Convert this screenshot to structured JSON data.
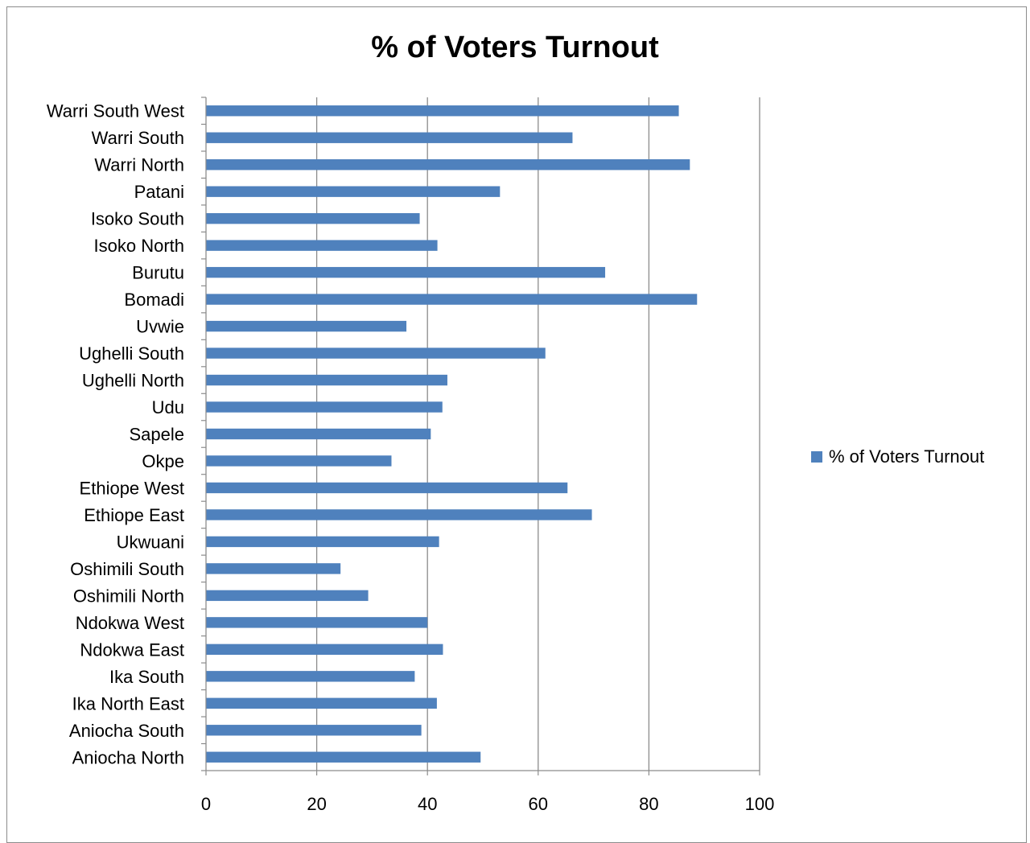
{
  "chart_data": {
    "type": "bar",
    "orientation": "horizontal",
    "title": "% of Voters Turnout",
    "categories": [
      "Warri South West",
      "Warri South",
      "Warri North",
      "Patani",
      "Isoko South",
      "Isoko North",
      "Burutu",
      "Bomadi",
      "Uvwie",
      "Ughelli South",
      "Ughelli North",
      "Udu",
      "Sapele",
      "Okpe",
      "Ethiope West",
      "Ethiope East",
      "Ukwuani",
      "Oshimili South",
      "Oshimili North",
      "Ndokwa West",
      "Ndokwa East",
      "Ika South",
      "Ika North East",
      "Aniocha South",
      "Aniocha North"
    ],
    "series": [
      {
        "name": "% of Voters Turnout",
        "color": "#4f81bd",
        "values": [
          85.4,
          66.2,
          87.4,
          53.1,
          38.6,
          41.8,
          72.1,
          88.7,
          36.2,
          61.3,
          43.6,
          42.7,
          40.6,
          33.5,
          65.3,
          69.7,
          42.1,
          24.3,
          29.3,
          40.0,
          42.8,
          37.7,
          41.7,
          38.9,
          49.6
        ]
      }
    ],
    "xlim": [
      0,
      100
    ],
    "x_ticks": [
      "0",
      "20",
      "40",
      "60",
      "80",
      "100"
    ],
    "grid": true,
    "legend_position": "right"
  }
}
